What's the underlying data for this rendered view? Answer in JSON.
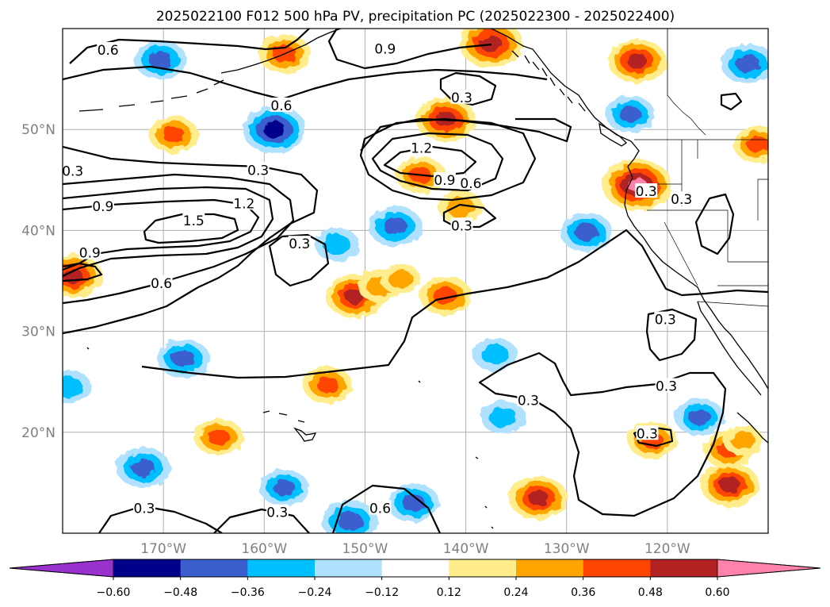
{
  "chart_data": {
    "type": "heatmap",
    "title": "2025022100 F012 500 hPa PV, precipitation PC (2025022300 - 2025022400)",
    "map_projection": "equirectangular",
    "lon_range": [
      -180,
      -110
    ],
    "lat_range": [
      10,
      60
    ],
    "x_ticks": [
      {
        "lon": -170,
        "label": "170°W"
      },
      {
        "lon": -160,
        "label": "160°W"
      },
      {
        "lon": -150,
        "label": "150°W"
      },
      {
        "lon": -140,
        "label": "140°W"
      },
      {
        "lon": -130,
        "label": "130°W"
      },
      {
        "lon": -120,
        "label": "120°W"
      }
    ],
    "y_ticks": [
      {
        "lat": 20,
        "label": "20°N"
      },
      {
        "lat": 30,
        "label": "30°N"
      },
      {
        "lat": 40,
        "label": "40°N"
      },
      {
        "lat": 50,
        "label": "50°N"
      }
    ],
    "grid": true,
    "colorbar": {
      "orientation": "horizontal",
      "extend": "both",
      "boundaries": [
        -0.6,
        -0.48,
        -0.36,
        -0.24,
        -0.12,
        0.12,
        0.24,
        0.36,
        0.48,
        0.6
      ],
      "tick_labels": [
        "−0.60",
        "−0.48",
        "−0.36",
        "−0.24",
        "−0.12",
        "0.12",
        "0.24",
        "0.36",
        "0.48",
        "0.60"
      ],
      "colors": [
        "#9932cc",
        "#00008b",
        "#3a5fcd",
        "#00bfff",
        "#b0e2ff",
        "#ffffff",
        "#ffec8b",
        "#ffa500",
        "#ff4500",
        "#b22222",
        "#ff82ab"
      ]
    },
    "pv_contour_levels": [
      0.3,
      0.6,
      0.9,
      1.2,
      1.5
    ],
    "contour_labels": [
      {
        "text": "0.6",
        "lon": -175.5,
        "lat": 57.8
      },
      {
        "text": "0.9",
        "lon": -148,
        "lat": 57.9
      },
      {
        "text": "0.6",
        "lon": -158.3,
        "lat": 52.3
      },
      {
        "text": "0.3",
        "lon": -140.4,
        "lat": 53.1
      },
      {
        "text": "0.3",
        "lon": -179,
        "lat": 45.8
      },
      {
        "text": "0.3",
        "lon": -160.6,
        "lat": 45.9
      },
      {
        "text": "1.2",
        "lon": -144.4,
        "lat": 48.1
      },
      {
        "text": "0.9",
        "lon": -142.1,
        "lat": 44.9
      },
      {
        "text": "0.6",
        "lon": -139.5,
        "lat": 44.6
      },
      {
        "text": "0.3",
        "lon": -122.1,
        "lat": 43.8
      },
      {
        "text": "0.9",
        "lon": -176,
        "lat": 42.3
      },
      {
        "text": "1.2",
        "lon": -162,
        "lat": 42.6
      },
      {
        "text": "1.5",
        "lon": -167,
        "lat": 40.9
      },
      {
        "text": "0.3",
        "lon": -140.4,
        "lat": 40.4
      },
      {
        "text": "0.3",
        "lon": -156.5,
        "lat": 38.6
      },
      {
        "text": "0.9",
        "lon": -177.3,
        "lat": 37.7
      },
      {
        "text": "0.6",
        "lon": -170.2,
        "lat": 34.7
      },
      {
        "text": "0.3",
        "lon": -118.6,
        "lat": 43.0
      },
      {
        "text": "0.3",
        "lon": -120.2,
        "lat": 31.1
      },
      {
        "text": "0.3",
        "lon": -133.8,
        "lat": 23.1
      },
      {
        "text": "0.3",
        "lon": -120.1,
        "lat": 24.5
      },
      {
        "text": "0.3",
        "lon": -122,
        "lat": 19.8
      },
      {
        "text": "0.3",
        "lon": -171.9,
        "lat": 12.4
      },
      {
        "text": "0.3",
        "lon": -158.7,
        "lat": 12.0
      },
      {
        "text": "0.6",
        "lon": -148.5,
        "lat": 12.4
      }
    ],
    "precipitation_pc_cells": [
      {
        "lon": -158,
        "lat": 57.5,
        "value": 0.4
      },
      {
        "lon": -137.5,
        "lat": 58.5,
        "value": 0.55
      },
      {
        "lon": -123,
        "lat": 56.8,
        "value": 0.48
      },
      {
        "lon": -142,
        "lat": 51.0,
        "value": 0.5
      },
      {
        "lon": -169,
        "lat": 49.5,
        "value": 0.36
      },
      {
        "lon": -144.5,
        "lat": 45.5,
        "value": 0.36
      },
      {
        "lon": -140.5,
        "lat": 42.3,
        "value": 0.3
      },
      {
        "lon": -123,
        "lat": 44.5,
        "value": 0.62
      },
      {
        "lon": -179,
        "lat": 35.5,
        "value": 0.48
      },
      {
        "lon": -151,
        "lat": 33.5,
        "value": 0.48
      },
      {
        "lon": -142,
        "lat": 33.5,
        "value": 0.4
      },
      {
        "lon": -148.5,
        "lat": 34.5,
        "value": 0.3
      },
      {
        "lon": -146.5,
        "lat": 35.2,
        "value": 0.24
      },
      {
        "lon": -153.7,
        "lat": 24.7,
        "value": 0.36
      },
      {
        "lon": -164.5,
        "lat": 19.5,
        "value": 0.36
      },
      {
        "lon": -132.8,
        "lat": 13.5,
        "value": 0.48
      },
      {
        "lon": -121.5,
        "lat": 19.2,
        "value": 0.36
      },
      {
        "lon": -114,
        "lat": 18.3,
        "value": 0.36
      },
      {
        "lon": -113.8,
        "lat": 14.8,
        "value": 0.48
      },
      {
        "lon": -112.5,
        "lat": 19.2,
        "value": 0.24
      },
      {
        "lon": -111,
        "lat": 48.5,
        "value": 0.36
      },
      {
        "lon": -170.3,
        "lat": 56.9,
        "value": -0.4
      },
      {
        "lon": -159,
        "lat": 50.0,
        "value": -0.55
      },
      {
        "lon": -123.7,
        "lat": 51.5,
        "value": -0.36
      },
      {
        "lon": -112,
        "lat": 56.5,
        "value": -0.42
      },
      {
        "lon": -147,
        "lat": 40.4,
        "value": -0.42
      },
      {
        "lon": -128,
        "lat": 39.8,
        "value": -0.4
      },
      {
        "lon": -152.8,
        "lat": 38.6,
        "value": -0.3
      },
      {
        "lon": -168,
        "lat": 27.3,
        "value": -0.4
      },
      {
        "lon": -179.4,
        "lat": 24.5,
        "value": -0.3
      },
      {
        "lon": -172,
        "lat": 16.5,
        "value": -0.42
      },
      {
        "lon": -158,
        "lat": 14.5,
        "value": -0.36
      },
      {
        "lon": -145.2,
        "lat": 13.0,
        "value": -0.4
      },
      {
        "lon": -151.5,
        "lat": 11.2,
        "value": -0.45
      },
      {
        "lon": -137.1,
        "lat": 27.7,
        "value": -0.3
      },
      {
        "lon": -136.3,
        "lat": 21.5,
        "value": -0.3
      },
      {
        "lon": -116.8,
        "lat": 21.5,
        "value": -0.36
      }
    ]
  }
}
